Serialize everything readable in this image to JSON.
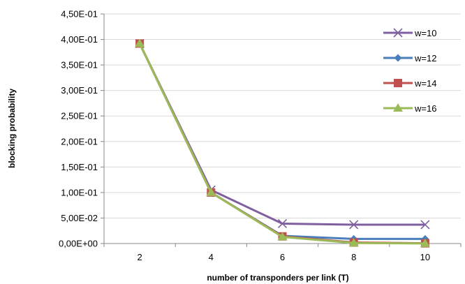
{
  "chart_data": {
    "type": "line",
    "title": "",
    "xlabel": "number of transponders per link (T)",
    "ylabel": "blocking probability",
    "x": [
      2,
      4,
      6,
      8,
      10
    ],
    "ylim": [
      0,
      0.45
    ],
    "yticks": [
      0,
      0.05,
      0.1,
      0.15,
      0.2,
      0.25,
      0.3,
      0.35,
      0.4,
      0.45
    ],
    "ytick_labels": [
      "0,00E+00",
      "5,00E-02",
      "1,00E-01",
      "1,50E-01",
      "2,00E-01",
      "2,50E-01",
      "3,00E-01",
      "3,50E-01",
      "4,00E-01",
      "4,50E-01"
    ],
    "xtick_labels": [
      "2",
      "4",
      "6",
      "8",
      "10"
    ],
    "grid": "horizontal",
    "legend_position": "top-right",
    "series": [
      {
        "name": "w=10",
        "color": "#7f5fa0",
        "marker": "x",
        "values": [
          0.392,
          0.105,
          0.039,
          0.037,
          0.037
        ]
      },
      {
        "name": "w=12",
        "color": "#4a7ebb",
        "marker": "diamond",
        "values": [
          0.392,
          0.1,
          0.015,
          0.009,
          0.009
        ]
      },
      {
        "name": "w=14",
        "color": "#c0504d",
        "marker": "square",
        "values": [
          0.392,
          0.1,
          0.014,
          0.002,
          0.0005
        ]
      },
      {
        "name": "w=16",
        "color": "#9bbb59",
        "marker": "triangle",
        "values": [
          0.392,
          0.1,
          0.013,
          0.001,
          0.0002
        ]
      }
    ]
  }
}
